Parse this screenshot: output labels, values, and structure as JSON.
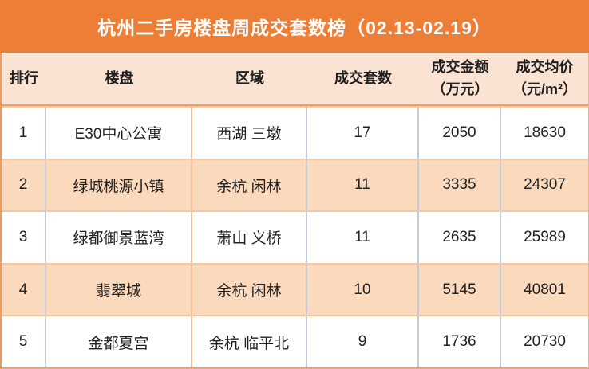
{
  "title": "杭州二手房楼盘周成交套数榜（02.13-02.19）",
  "colors": {
    "banner_orange": "#EC7E35",
    "header_peach": "#FBE3D4",
    "alt_row_peach": "#FBD9BD",
    "row_separator_orange": "#F6C8A4",
    "column_separator_gray": "#C3CADC",
    "text_dark": "#212121",
    "title_text": "#FFFFFF"
  },
  "table": {
    "headers": [
      {
        "label": "排行",
        "sub": ""
      },
      {
        "label": "楼盘",
        "sub": ""
      },
      {
        "label": "区域",
        "sub": ""
      },
      {
        "label": "成交套数",
        "sub": ""
      },
      {
        "label": "成交金额",
        "sub": "（万元）"
      },
      {
        "label": "成交均价",
        "sub": "（元/m²）"
      }
    ],
    "rows": [
      {
        "rank": "1",
        "name": "E30中心公寓",
        "district": "西湖 三墩",
        "units": "17",
        "amount": "2050",
        "avg_price": "18630"
      },
      {
        "rank": "2",
        "name": "绿城桃源小镇",
        "district": "余杭 闲林",
        "units": "11",
        "amount": "3335",
        "avg_price": "24307"
      },
      {
        "rank": "3",
        "name": "绿都御景蓝湾",
        "district": "萧山 义桥",
        "units": "11",
        "amount": "2635",
        "avg_price": "25989"
      },
      {
        "rank": "4",
        "name": "翡翠城",
        "district": "余杭 闲林",
        "units": "10",
        "amount": "5145",
        "avg_price": "40801"
      },
      {
        "rank": "5",
        "name": "金都夏宫",
        "district": "余杭 临平北",
        "units": "9",
        "amount": "1736",
        "avg_price": "20730"
      }
    ]
  },
  "chart_data": {
    "type": "table",
    "title": "杭州二手房楼盘周成交套数榜（02.13-02.19）",
    "columns": [
      "排行",
      "楼盘",
      "区域",
      "成交套数",
      "成交金额（万元）",
      "成交均价（元/m²）"
    ],
    "rows": [
      [
        1,
        "E30中心公寓",
        "西湖 三墩",
        17,
        2050,
        18630
      ],
      [
        2,
        "绿城桃源小镇",
        "余杭 闲林",
        11,
        3335,
        24307
      ],
      [
        3,
        "绿都御景蓝湾",
        "萧山 义桥",
        11,
        2635,
        25989
      ],
      [
        4,
        "翡翠城",
        "余杭 闲林",
        10,
        5145,
        40801
      ],
      [
        5,
        "金都夏宫",
        "余杭 临平北",
        9,
        1736,
        20730
      ]
    ]
  }
}
